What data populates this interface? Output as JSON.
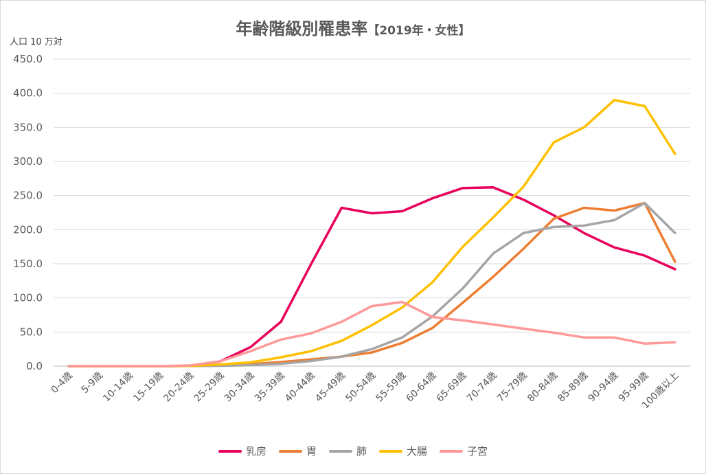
{
  "title": "年齢階級別罹患率",
  "subtitle": "【2019年・女性】",
  "chart_data": {
    "type": "line",
    "title": "年齢階級別罹患率【2019年・女性】",
    "ylabel": "人口 10 万対",
    "xlabel": "",
    "ylim": [
      0,
      450
    ],
    "yticks": [
      "0.0",
      "50.0",
      "100.0",
      "150.0",
      "200.0",
      "250.0",
      "300.0",
      "350.0",
      "400.0",
      "450.0"
    ],
    "grid": true,
    "legend": "bottom",
    "categories": [
      "0-4歳",
      "5-9歳",
      "10-14歳",
      "15-19歳",
      "20-24歳",
      "25-29歳",
      "30-34歳",
      "35-39歳",
      "40-44歳",
      "45-49歳",
      "50-54歳",
      "55-59歳",
      "60-64歳",
      "65-69歳",
      "70-74歳",
      "75-79歳",
      "80-84歳",
      "85-89歳",
      "90-94歳",
      "95-99歳",
      "100歳以上"
    ],
    "series": [
      {
        "name": "乳房",
        "color": "#e8005a",
        "values": [
          0,
          0,
          0,
          0,
          0.5,
          7,
          28,
          65,
          150,
          232,
          224,
          227,
          246,
          261,
          262,
          244,
          221,
          195,
          174,
          162,
          142
        ]
      },
      {
        "name": "胃",
        "color": "#ed7d31",
        "values": [
          0,
          0,
          0,
          0,
          0.3,
          1.5,
          3,
          6,
          10,
          14,
          20,
          34,
          56,
          93,
          131,
          172,
          216,
          232,
          228,
          239,
          153
        ]
      },
      {
        "name": "肺",
        "color": "#a5a5a5",
        "values": [
          0,
          0,
          0,
          0,
          0.2,
          0.5,
          1.5,
          3.5,
          7.5,
          14,
          25,
          42,
          73,
          114,
          165,
          195,
          204,
          206,
          214,
          239,
          195
        ]
      },
      {
        "name": "大腸",
        "color": "#ffc000",
        "values": [
          0,
          0,
          0,
          0,
          0.3,
          2.5,
          5.5,
          13,
          22,
          37,
          60,
          86,
          123,
          175,
          218,
          263,
          328,
          350,
          390,
          381,
          311
        ]
      },
      {
        "name": "子宮",
        "color": "#ff9999",
        "values": [
          0,
          0,
          0,
          0,
          1,
          7,
          22,
          39,
          48,
          65,
          88,
          94,
          72,
          67,
          61,
          55,
          49,
          42,
          42,
          33,
          35
        ]
      }
    ]
  }
}
